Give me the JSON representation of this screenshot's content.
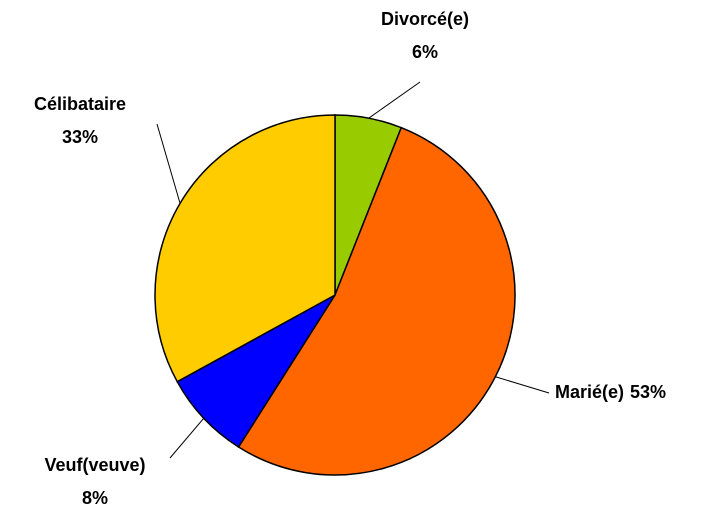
{
  "chart_data": {
    "type": "pie",
    "categories": [
      "Divorcé(e)",
      "Marié(e)",
      "Veuf(veuve)",
      "Célibataire"
    ],
    "values": [
      6,
      53,
      8,
      33
    ],
    "value_labels": [
      "6%",
      "53%",
      "8%",
      "33%"
    ],
    "colors": [
      "#99cc00",
      "#ff6600",
      "#0000ff",
      "#ffcc00"
    ]
  }
}
